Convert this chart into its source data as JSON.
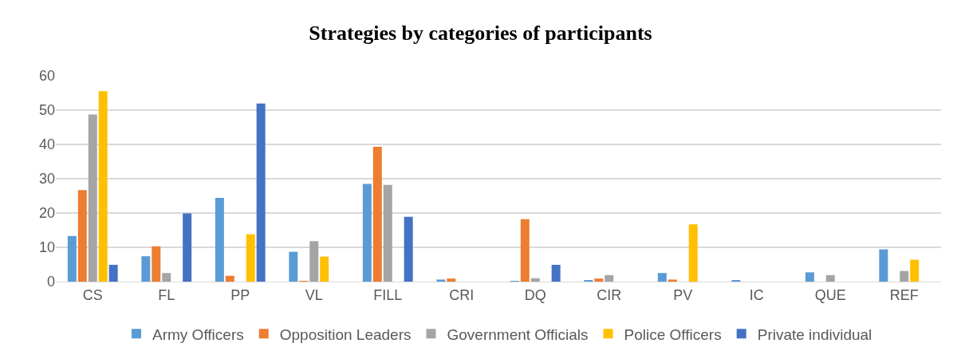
{
  "chart_data": {
    "type": "bar",
    "title": "Strategies by categories of participants",
    "categories": [
      "CS",
      "FL",
      "PP",
      "VL",
      "FILL",
      "CRI",
      "DQ",
      "CIR",
      "PV",
      "IC",
      "QUE",
      "REF"
    ],
    "series": [
      {
        "name": "Army Officers",
        "color": "#5b9bd5",
        "values": [
          13.3,
          7.4,
          24.4,
          8.7,
          28.5,
          0.6,
          0.1,
          0.4,
          2.5,
          0.3,
          2.7,
          9.4
        ]
      },
      {
        "name": "Opposition Leaders",
        "color": "#ed7d31",
        "values": [
          26.7,
          10.3,
          1.7,
          0.2,
          39.3,
          0.9,
          18.2,
          0.9,
          0.6,
          0,
          0,
          0
        ]
      },
      {
        "name": "Government Officials",
        "color": "#a5a5a5",
        "values": [
          48.7,
          2.5,
          0,
          11.8,
          28.2,
          0,
          1.0,
          1.9,
          0,
          0,
          1.9,
          3.1
        ]
      },
      {
        "name": "Police Officers",
        "color": "#ffc000",
        "values": [
          55.5,
          0,
          13.8,
          7.3,
          0,
          0,
          0,
          0,
          16.7,
          0,
          0,
          6.4
        ]
      },
      {
        "name": "Private individual",
        "color": "#4472c4",
        "values": [
          4.9,
          19.9,
          51.9,
          0,
          18.9,
          0,
          4.9,
          0,
          0,
          0,
          0,
          0
        ]
      }
    ],
    "ylim": [
      0,
      60
    ],
    "yticks": [
      0,
      10,
      20,
      30,
      40,
      50,
      60
    ],
    "grid": "y",
    "legend": "bottom"
  }
}
